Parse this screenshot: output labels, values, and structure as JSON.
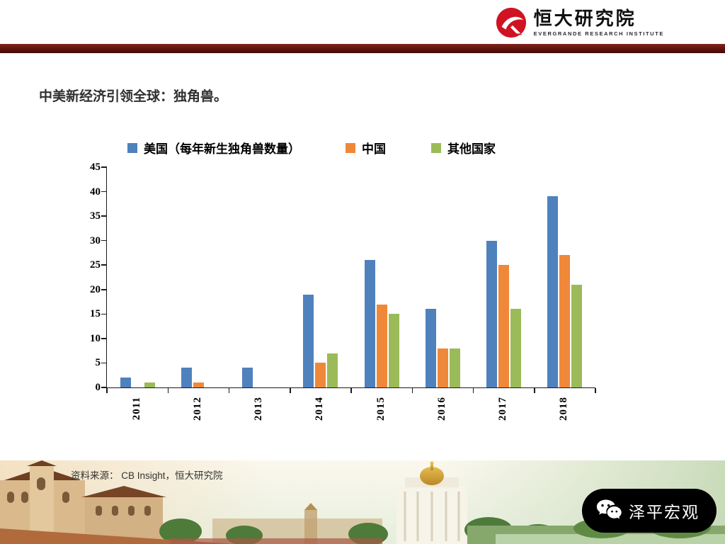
{
  "header": {
    "brand_cn": "恒大研究院",
    "brand_en": "EVERGRANDE RESEARCH INSTITUTE"
  },
  "title": "中美新经济引领全球：独角兽。",
  "chart_data": {
    "type": "bar",
    "title": "",
    "categories": [
      "2011",
      "2012",
      "2013",
      "2014",
      "2015",
      "2016",
      "2017",
      "2018"
    ],
    "series": [
      {
        "name": "美国（每年新生独角兽数量）",
        "color": "#4f81bd",
        "values": [
          2,
          4,
          4,
          19,
          26,
          16,
          30,
          39
        ]
      },
      {
        "name": "中国",
        "color": "#f0883a",
        "values": [
          0,
          1,
          0,
          5,
          17,
          8,
          25,
          27
        ]
      },
      {
        "name": "其他国家",
        "color": "#9bbb59",
        "values": [
          1,
          0,
          0,
          7,
          15,
          8,
          16,
          21
        ]
      }
    ],
    "xlabel": "",
    "ylabel": "",
    "ylim": [
      0,
      45
    ],
    "ytick_step": 5,
    "grid": false,
    "legend_position": "top"
  },
  "source": "资料来源： CB Insight，恒大研究院",
  "wechat_badge": {
    "label": "泽平宏观",
    "icon": "wechat-icon"
  },
  "colors": {
    "brand_bar": "#5e130c",
    "logo_red": "#cf1322",
    "axis": "#1a1a1a"
  }
}
